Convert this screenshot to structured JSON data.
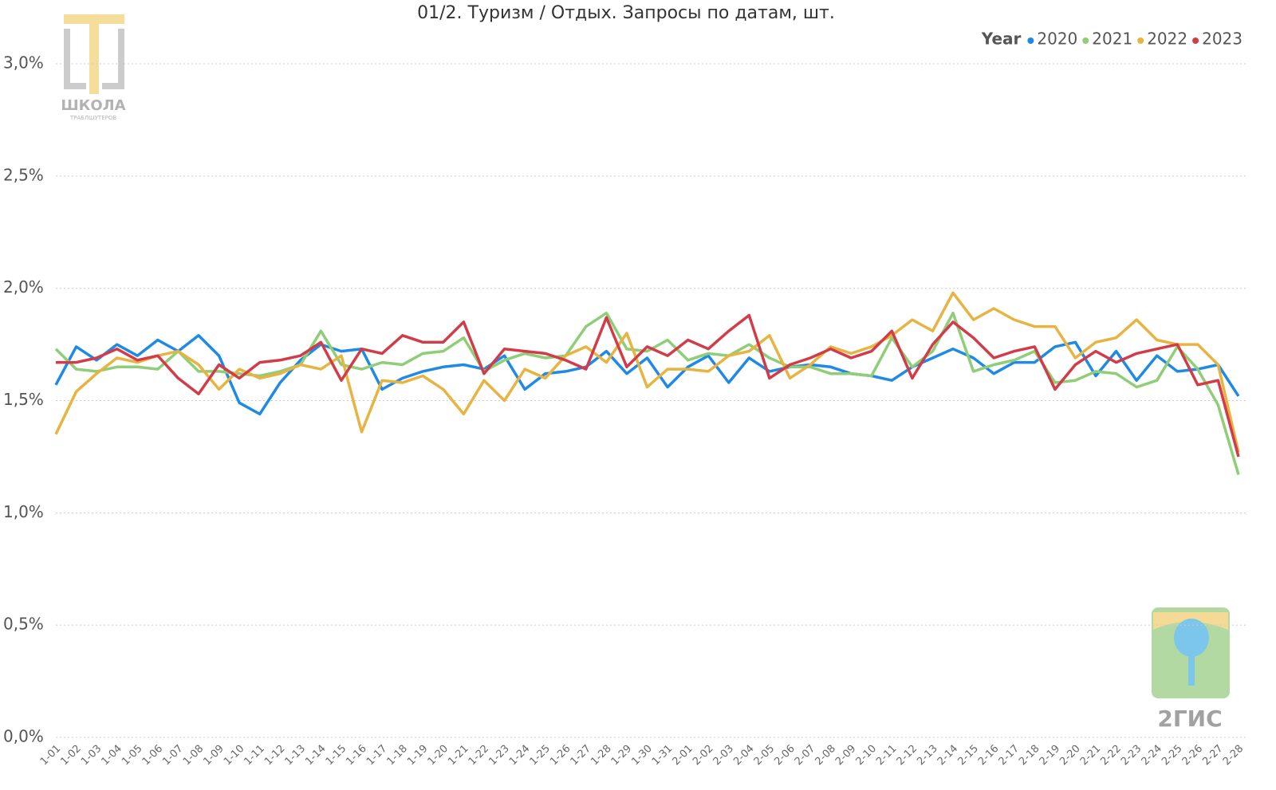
{
  "chart_data": {
    "type": "line",
    "title": "01/2. Туризм / Отдых. Запросы по датам, шт.",
    "legend_title": "Year",
    "legend_position": "top-right",
    "grid": true,
    "categories": [
      "1-01",
      "1-02",
      "1-03",
      "1-04",
      "1-05",
      "1-06",
      "1-07",
      "1-08",
      "1-09",
      "1-10",
      "1-11",
      "1-12",
      "1-13",
      "1-14",
      "1-15",
      "1-16",
      "1-17",
      "1-18",
      "1-19",
      "1-20",
      "1-21",
      "1-22",
      "1-23",
      "1-24",
      "1-25",
      "1-26",
      "1-27",
      "1-28",
      "1-29",
      "1-30",
      "1-31",
      "2-01",
      "2-02",
      "2-03",
      "2-04",
      "2-05",
      "2-06",
      "2-07",
      "2-08",
      "2-09",
      "2-10",
      "2-11",
      "2-12",
      "2-13",
      "2-14",
      "2-15",
      "2-16",
      "2-17",
      "2-18",
      "2-19",
      "2-20",
      "2-21",
      "2-22",
      "2-23",
      "2-24",
      "2-25",
      "2-26",
      "2-27",
      "2-28"
    ],
    "ylim": [
      0,
      3.2
    ],
    "yticks": [
      {
        "value": 0,
        "label": "0,0%"
      },
      {
        "value": 0.5,
        "label": "0,5%"
      },
      {
        "value": 1,
        "label": "1,0%"
      },
      {
        "value": 1.5,
        "label": "1,5%"
      },
      {
        "value": 2,
        "label": "2,0%"
      },
      {
        "value": 2.5,
        "label": "2,5%"
      },
      {
        "value": 3,
        "label": "3,0%"
      }
    ],
    "series": [
      {
        "name": "2020",
        "color": "#1f8ae6",
        "values": [
          1.57,
          1.74,
          1.68,
          1.75,
          1.7,
          1.77,
          1.72,
          1.79,
          1.7,
          1.49,
          1.44,
          1.58,
          1.68,
          1.75,
          1.72,
          1.73,
          1.55,
          1.6,
          1.63,
          1.65,
          1.66,
          1.64,
          1.7,
          1.55,
          1.62,
          1.63,
          1.65,
          1.72,
          1.62,
          1.69,
          1.56,
          1.65,
          1.7,
          1.58,
          1.69,
          1.63,
          1.65,
          1.66,
          1.65,
          1.62,
          1.61,
          1.59,
          1.65,
          1.69,
          1.73,
          1.69,
          1.62,
          1.67,
          1.67,
          1.74,
          1.76,
          1.61,
          1.72,
          1.59,
          1.7,
          1.63,
          1.64,
          1.66,
          1.52
        ]
      },
      {
        "name": "2021",
        "color": "#8fce77",
        "values": [
          1.73,
          1.64,
          1.63,
          1.65,
          1.65,
          1.64,
          1.72,
          1.63,
          1.63,
          1.62,
          1.61,
          1.63,
          1.66,
          1.81,
          1.66,
          1.64,
          1.67,
          1.66,
          1.71,
          1.72,
          1.78,
          1.63,
          1.68,
          1.71,
          1.69,
          1.7,
          1.83,
          1.89,
          1.73,
          1.72,
          1.77,
          1.68,
          1.71,
          1.7,
          1.75,
          1.69,
          1.65,
          1.65,
          1.62,
          1.62,
          1.61,
          1.78,
          1.65,
          1.72,
          1.89,
          1.63,
          1.66,
          1.68,
          1.72,
          1.58,
          1.59,
          1.63,
          1.62,
          1.56,
          1.59,
          1.74,
          1.64,
          1.48,
          1.17
        ]
      },
      {
        "name": "2022",
        "color": "#e8b441",
        "values": [
          1.35,
          1.54,
          1.62,
          1.69,
          1.67,
          1.7,
          1.72,
          1.66,
          1.55,
          1.64,
          1.6,
          1.62,
          1.66,
          1.64,
          1.7,
          1.36,
          1.59,
          1.58,
          1.61,
          1.55,
          1.44,
          1.59,
          1.5,
          1.64,
          1.6,
          1.7,
          1.74,
          1.67,
          1.8,
          1.56,
          1.64,
          1.64,
          1.63,
          1.7,
          1.72,
          1.79,
          1.6,
          1.66,
          1.74,
          1.71,
          1.74,
          1.79,
          1.86,
          1.81,
          1.98,
          1.86,
          1.91,
          1.86,
          1.83,
          1.83,
          1.69,
          1.76,
          1.78,
          1.86,
          1.77,
          1.75,
          1.75,
          1.66,
          1.27
        ]
      },
      {
        "name": "2023",
        "color": "#d13c48",
        "values": [
          1.67,
          1.67,
          1.69,
          1.73,
          1.68,
          1.7,
          1.6,
          1.53,
          1.66,
          1.6,
          1.67,
          1.68,
          1.7,
          1.76,
          1.59,
          1.73,
          1.71,
          1.79,
          1.76,
          1.76,
          1.85,
          1.62,
          1.73,
          1.72,
          1.71,
          1.68,
          1.64,
          1.87,
          1.65,
          1.74,
          1.7,
          1.77,
          1.73,
          1.81,
          1.88,
          1.6,
          1.66,
          1.69,
          1.73,
          1.69,
          1.72,
          1.81,
          1.6,
          1.75,
          1.85,
          1.78,
          1.69,
          1.72,
          1.74,
          1.55,
          1.66,
          1.72,
          1.67,
          1.71,
          1.73,
          1.75,
          1.57,
          1.59,
          1.25
        ]
      }
    ]
  },
  "logos": {
    "school_name": "ШКОЛА",
    "school_sub": "ТРАБЛШУТЕРОВ",
    "brand": "2ГИС"
  }
}
